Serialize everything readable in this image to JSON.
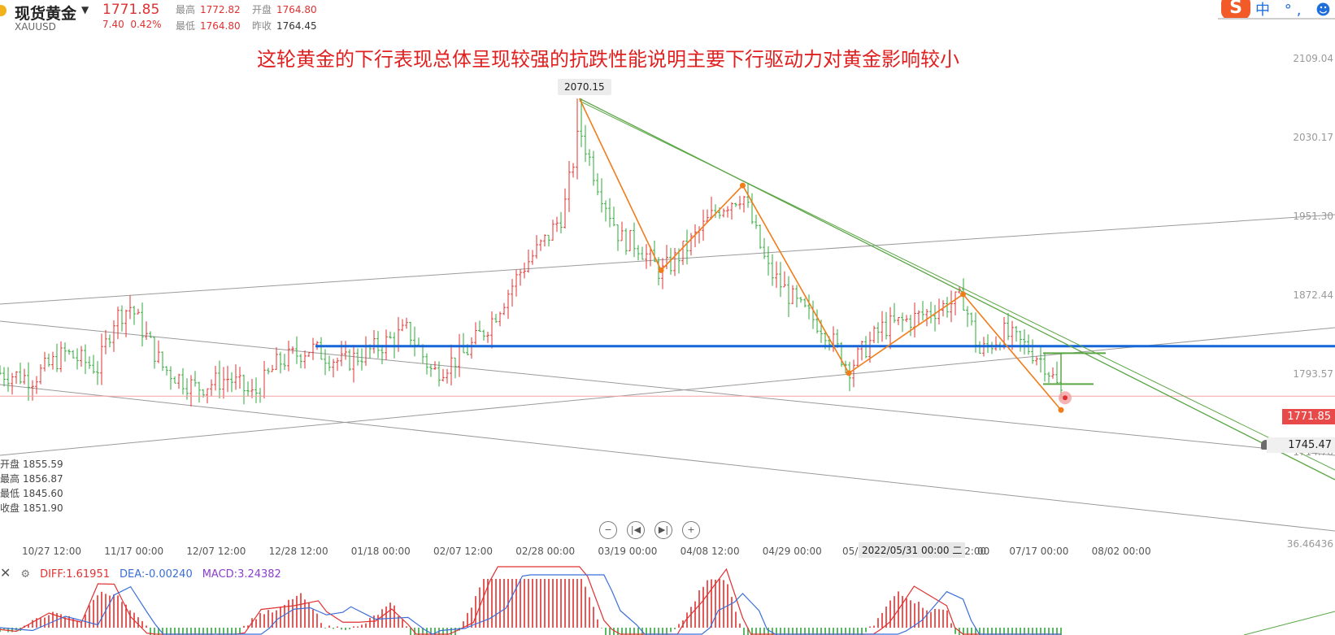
{
  "header": {
    "name": "现货黄金",
    "symbol": "XAUUSD",
    "price": "1771.85",
    "change": "7.40",
    "change_pct": "0.42%",
    "high_label": "最高",
    "high": "1772.82",
    "open_label": "开盘",
    "open": "1764.80",
    "low_label": "最低",
    "low": "1764.80",
    "prev_label": "昨收",
    "prev": "1764.45"
  },
  "headline": "这轮黄金的下行表现总体呈现较强的抗跌性能说明主要下行驱动力对黄金影响较小",
  "ohlc_panel": {
    "open_label": "开盘",
    "open": "1855.59",
    "high_label": "最高",
    "high": "1856.87",
    "low_label": "最低",
    "low": "1845.60",
    "close_label": "收盘",
    "close": "1851.90"
  },
  "toolbar": {
    "logo": "S",
    "text": "中 °, ☻ ☺"
  },
  "nav": {
    "zoom_out": "−",
    "prev": "|◀",
    "next": "▶|",
    "zoom_in": "+"
  },
  "chart_data": {
    "type": "candlestick",
    "y_ticks": [
      "2109.04",
      "2030.17",
      "1951.30",
      "1872.44",
      "1793.57",
      "1714.70"
    ],
    "x_ticks": [
      "10/27 12:00",
      "11/17 00:00",
      "12/07 12:00",
      "12/28 12:00",
      "01/18 00:00",
      "02/07 12:00",
      "02/28 00:00",
      "03/19 00:00",
      "04/08 12:00",
      "04/29 00:00",
      "05/",
      "00",
      "06/29 12:00",
      "07/17 00:00",
      "08/02 00:00"
    ],
    "x_cursor_label": "2022/05/31 00:00 二",
    "ylim": [
      1680,
      2120
    ],
    "peak_label": "2070.15",
    "peak_value": 2070.15,
    "last_price": 1771.85,
    "last_price_label": "1771.85",
    "alert_price": 1745.47,
    "alert_label": "1745.47",
    "horizontal_level": 1822,
    "price_path": [
      {
        "t": 0,
        "v": 1795
      },
      {
        "t": 4,
        "v": 1790
      },
      {
        "t": 8,
        "v": 1815
      },
      {
        "t": 12,
        "v": 1800
      },
      {
        "t": 14,
        "v": 1850
      },
      {
        "t": 16,
        "v": 1862
      },
      {
        "t": 18,
        "v": 1830
      },
      {
        "t": 20,
        "v": 1800
      },
      {
        "t": 24,
        "v": 1780
      },
      {
        "t": 28,
        "v": 1790
      },
      {
        "t": 31,
        "v": 1772
      },
      {
        "t": 34,
        "v": 1805
      },
      {
        "t": 38,
        "v": 1820
      },
      {
        "t": 42,
        "v": 1805
      },
      {
        "t": 46,
        "v": 1820
      },
      {
        "t": 50,
        "v": 1838
      },
      {
        "t": 53,
        "v": 1795
      },
      {
        "t": 57,
        "v": 1815
      },
      {
        "t": 60,
        "v": 1845
      },
      {
        "t": 64,
        "v": 1900
      },
      {
        "t": 67,
        "v": 1930
      },
      {
        "t": 69,
        "v": 1955
      },
      {
        "t": 71,
        "v": 2040
      },
      {
        "t": 73,
        "v": 1990
      },
      {
        "t": 76,
        "v": 1930
      },
      {
        "t": 78,
        "v": 1925
      },
      {
        "t": 81,
        "v": 1895
      },
      {
        "t": 84,
        "v": 1920
      },
      {
        "t": 88,
        "v": 1960
      },
      {
        "t": 91,
        "v": 1975
      },
      {
        "t": 94,
        "v": 1900
      },
      {
        "t": 98,
        "v": 1860
      },
      {
        "t": 101,
        "v": 1840
      },
      {
        "t": 104,
        "v": 1800
      },
      {
        "t": 108,
        "v": 1840
      },
      {
        "t": 112,
        "v": 1850
      },
      {
        "t": 115,
        "v": 1860
      },
      {
        "t": 118,
        "v": 1870
      },
      {
        "t": 120,
        "v": 1815
      },
      {
        "t": 123,
        "v": 1835
      },
      {
        "t": 126,
        "v": 1820
      },
      {
        "t": 128,
        "v": 1805
      },
      {
        "t": 130,
        "v": 1775
      }
    ],
    "macd": {
      "DIFF": "DIFF:1.61951",
      "DEA": "DEA:-0.00240",
      "MACD": "MACD:3.24382",
      "axis_max": "36.46436"
    }
  },
  "colors": {
    "up": "#e03131",
    "down": "#2fa83a",
    "blue_line": "#1565d8",
    "orange": "#f07d1a",
    "green_trend": "#5aa645",
    "gray_line": "#9a9a9a",
    "diff": "#e03131",
    "dea": "#3b6fd8"
  }
}
